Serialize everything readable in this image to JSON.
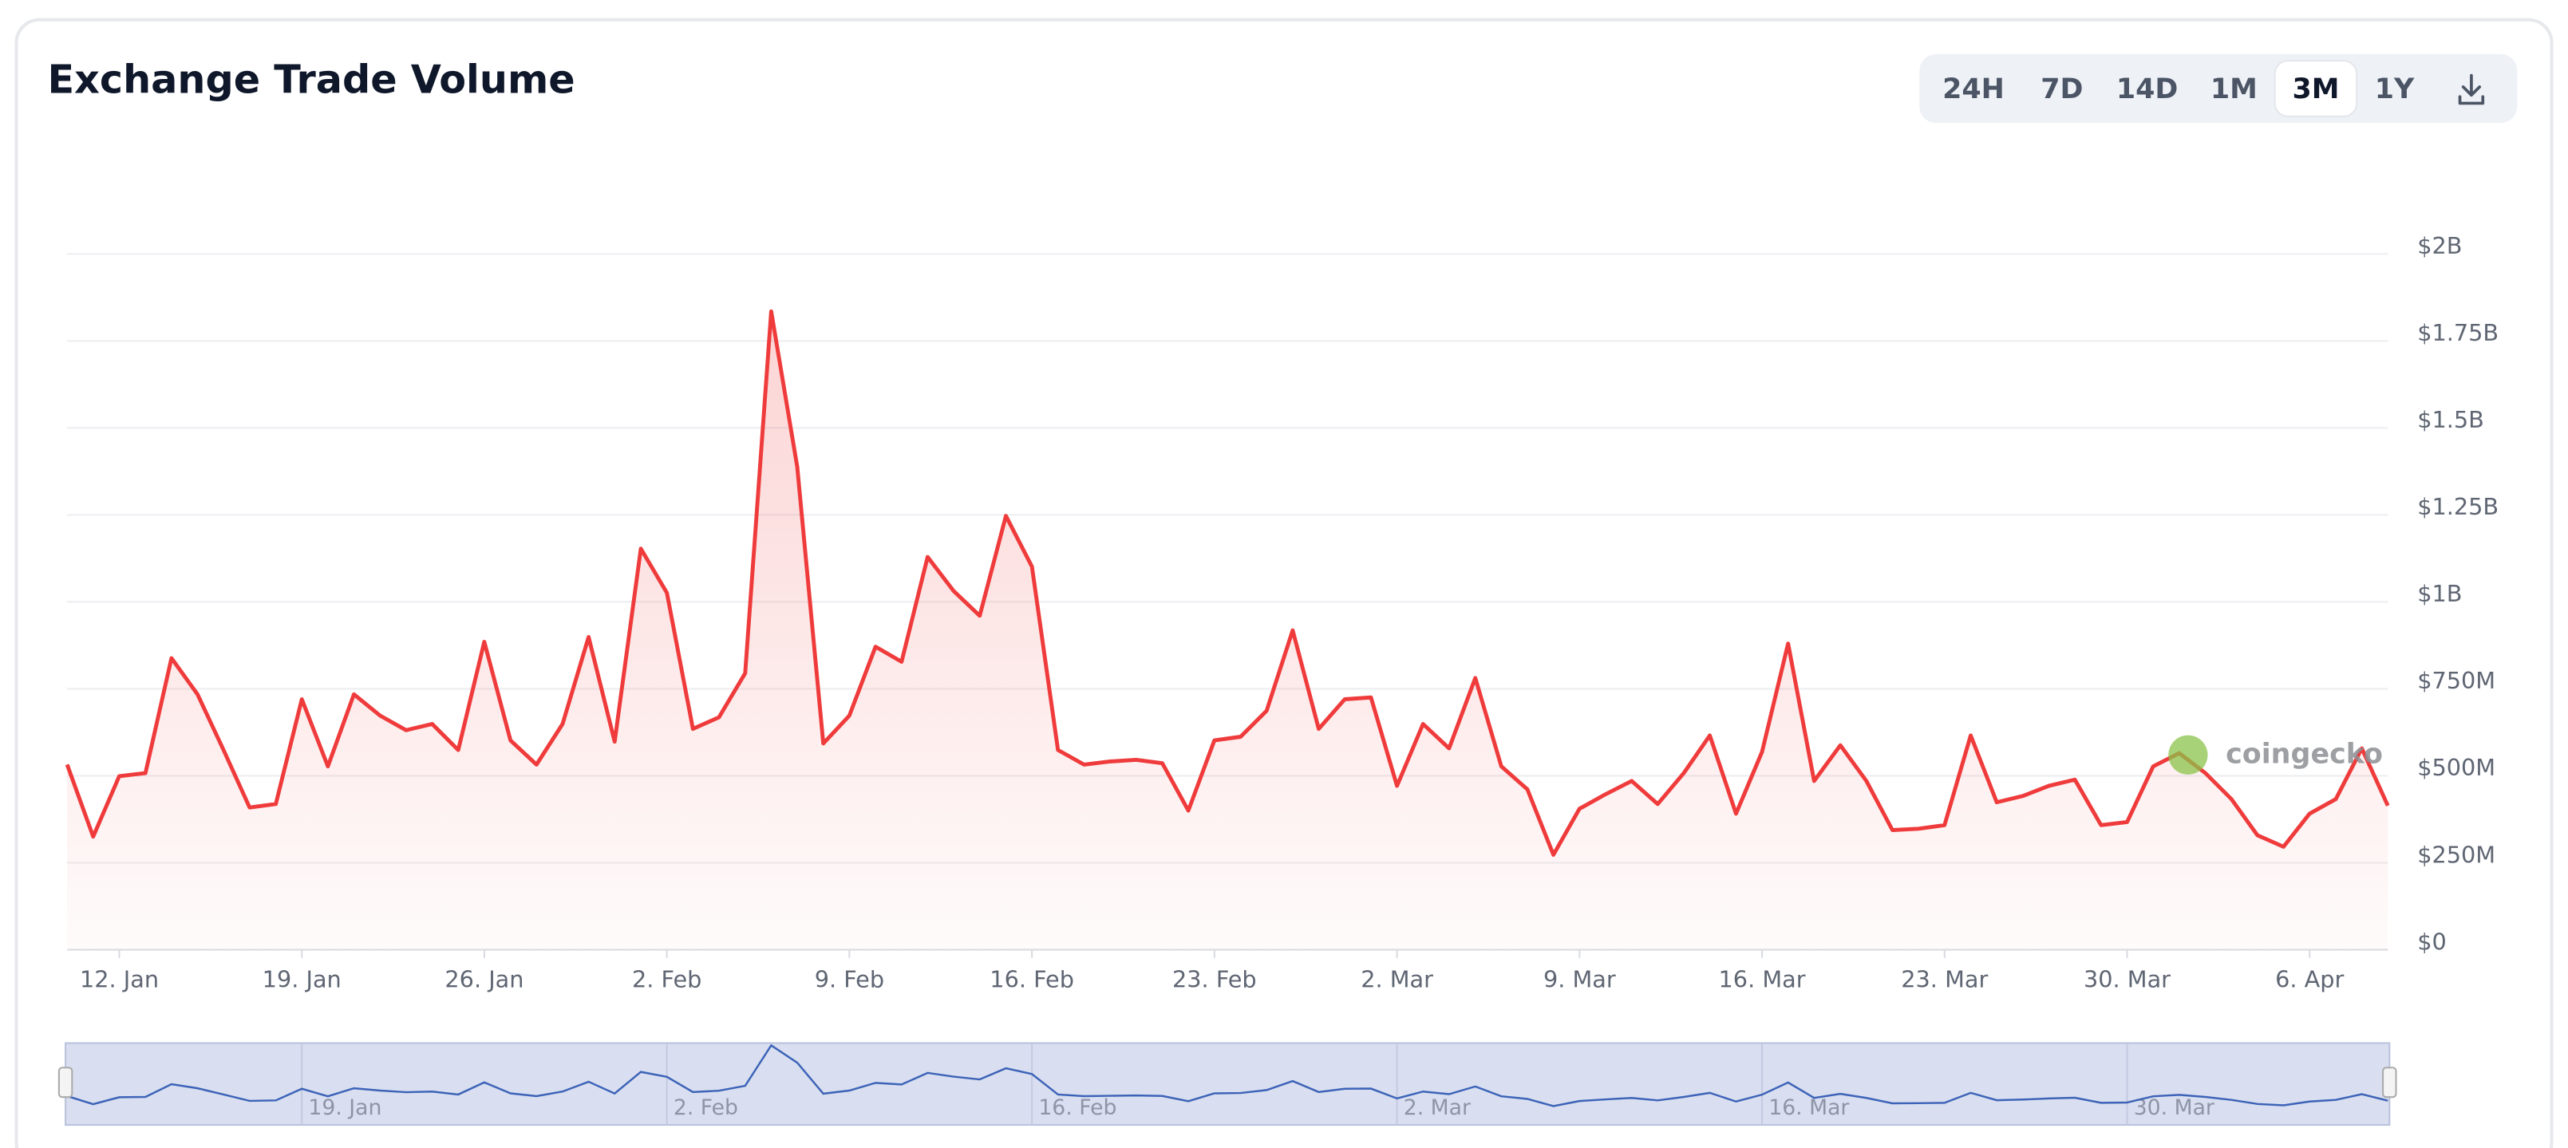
{
  "range_buttons": {
    "labels": [
      "24H",
      "7D",
      "14D",
      "1M",
      "3M",
      "1Y"
    ],
    "active": "3M"
  },
  "chart_data": {
    "type": "line",
    "title": "Exchange Trade Volume",
    "watermark": "coingecko",
    "categories": [
      null,
      null,
      "12. Jan",
      null,
      null,
      null,
      null,
      null,
      null,
      "19. Jan",
      null,
      null,
      null,
      null,
      null,
      null,
      "26. Jan",
      null,
      null,
      null,
      null,
      null,
      null,
      "2. Feb",
      null,
      null,
      null,
      null,
      null,
      null,
      "9. Feb",
      null,
      null,
      null,
      null,
      null,
      null,
      "16. Feb",
      null,
      null,
      null,
      null,
      null,
      null,
      "23. Feb",
      null,
      null,
      null,
      null,
      null,
      null,
      "2. Mar",
      null,
      null,
      null,
      null,
      null,
      null,
      "9. Mar",
      null,
      null,
      null,
      null,
      null,
      null,
      "16. Mar",
      null,
      null,
      null,
      null,
      null,
      null,
      "23. Mar",
      null,
      null,
      null,
      null,
      null,
      null,
      "30. Mar",
      null,
      null,
      null,
      null,
      null,
      null,
      "6. Apr",
      null,
      null,
      null
    ],
    "series": [
      {
        "color": "#ef3b3b",
        "values": [
          532000000.0,
          325000000.0,
          499000000.0,
          508000000.0,
          838000000.0,
          734000000.0,
          574000000.0,
          409000000.0,
          419000000.0,
          720000000.0,
          527000000.0,
          734000000.0,
          673000000.0,
          631000000.0,
          649000000.0,
          574000000.0,
          885000000.0,
          602000000.0,
          532000000.0,
          649000000.0,
          899000000.0,
          598000000.0,
          1153000000.0,
          1026000000.0,
          635000000.0,
          668000000.0,
          795000000.0,
          1835000000.0,
          1388000000.0,
          593000000.0,
          673000000.0,
          871000000.0,
          828000000.0,
          1129000000.0,
          1031000000.0,
          960000000.0,
          1247000000.0,
          1101000000.0,
          574000000.0,
          532000000.0,
          541000000.0,
          546000000.0,
          536000000.0,
          400000000.0,
          602000000.0,
          612000000.0,
          687000000.0,
          918000000.0,
          635000000.0,
          720000000.0,
          725000000.0,
          471000000.0,
          649000000.0,
          579000000.0,
          781000000.0,
          527000000.0,
          461000000.0,
          273000000.0,
          405000000.0,
          447000000.0,
          485000000.0,
          419000000.0,
          508000000.0,
          616000000.0,
          391000000.0,
          569000000.0,
          880000000.0,
          485000000.0,
          588000000.0,
          485000000.0,
          344000000.0,
          348000000.0,
          358000000.0,
          616000000.0,
          424000000.0,
          442000000.0,
          471000000.0,
          489000000.0,
          358000000.0,
          367000000.0,
          527000000.0,
          565000000.0,
          508000000.0,
          433000000.0,
          329000000.0,
          296000000.0,
          391000000.0,
          433000000.0,
          579000000.0,
          414000000.0
        ]
      }
    ],
    "ylim": [
      0,
      2000000000
    ],
    "yticks": [
      {
        "value": 0,
        "label": "$0"
      },
      {
        "value": 250000000,
        "label": "$250M"
      },
      {
        "value": 500000000,
        "label": "$500M"
      },
      {
        "value": 750000000,
        "label": "$750M"
      },
      {
        "value": 1000000000,
        "label": "$1B"
      },
      {
        "value": 1250000000,
        "label": "$1.25B"
      },
      {
        "value": 1500000000,
        "label": "$1.5B"
      },
      {
        "value": 1750000000,
        "label": "$1.75B"
      },
      {
        "value": 2000000000,
        "label": "$2B"
      }
    ],
    "grid": true
  }
}
